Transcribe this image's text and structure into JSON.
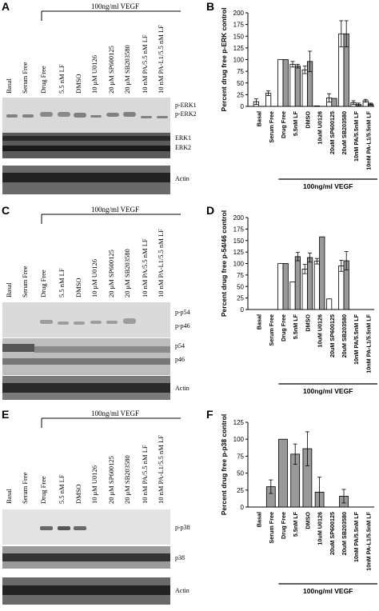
{
  "panels": {
    "A": {
      "letter": "A",
      "vegf_label": "100ng/ml VEGF",
      "lanes": [
        "Basal",
        "Serum Free",
        "Drug Free",
        "5.5 nM LF",
        "DMSO",
        "10 μM U0126",
        "20 μM SP600125",
        "20 μM SB203580",
        "10 nM PA/5.5 nM LF",
        "10 nM PA-L1/5.5 nM LF"
      ],
      "blot_labels": [
        [
          "p-ERK1",
          "p-ERK2"
        ],
        [
          "ERK1",
          "ERK2"
        ],
        [
          "Actin"
        ]
      ]
    },
    "C": {
      "letter": "C",
      "vegf_label": "100ng/ml VEGF",
      "lanes": [
        "Basal",
        "Serum Free",
        "Drug Free",
        "5.5 nM LF",
        "DMSO",
        "10 μM U0126",
        "20 μM SP600125",
        "20 μM SB203580",
        "10 nM PA/5.5 nM LF",
        "10 nM PA-L1/5.5 nM LF"
      ],
      "blot_labels": [
        [
          "p-p54",
          "p-p46"
        ],
        [
          "p54",
          "p46"
        ],
        [
          "Actin"
        ]
      ]
    },
    "E": {
      "letter": "E",
      "vegf_label": "100ng/ml VEGF",
      "lanes": [
        "Basal",
        "Serum Free",
        "Drug Free",
        "5.5 nM LF",
        "DMSO",
        "10 μM U0126",
        "20 μM SP600125",
        "20 μM SB203580",
        "10 nM PA/5.5 nM LF",
        "10 nM PA-L1/5.5 nM LF"
      ],
      "blot_labels": [
        [
          "p-p38"
        ],
        [
          "p38"
        ],
        [
          "Actin"
        ]
      ]
    }
  },
  "chart_data": [
    {
      "panel": "B",
      "type": "bar",
      "ylabel": "Percent drug free p-ERK control",
      "ylim": [
        0,
        200
      ],
      "yticks": [
        "0",
        "25",
        "50",
        "75",
        "100",
        "125",
        "150",
        "175",
        "200"
      ],
      "categories": [
        "Basal",
        "Serum Free",
        "Drug Free",
        "5.5nM LF",
        "DMSO",
        "10uM U0126",
        "20uM SP600125",
        "20uM SB203580",
        "10nM PA/5.5nM LF",
        "10nM PA-L1/5.5nM LF"
      ],
      "series": [
        {
          "values": [
            10,
            28,
            100,
            90,
            78,
            1,
            18,
            155,
            8,
            12
          ],
          "errors": [
            6,
            5,
            0,
            6,
            8,
            0,
            9,
            28,
            4,
            3
          ],
          "color": "#ffffff"
        },
        {
          "values": [
            null,
            null,
            100,
            86,
            96,
            null,
            17,
            155,
            4,
            5
          ],
          "errors": [
            0,
            0,
            0,
            4,
            22,
            0,
            0,
            28,
            3,
            2
          ],
          "color": "#999999"
        }
      ],
      "group_label": "100ng/ml VEGF"
    },
    {
      "panel": "D",
      "type": "bar",
      "ylabel": "Percent drug free p-54/46 control",
      "ylim": [
        0,
        200
      ],
      "yticks": [
        "0",
        "25",
        "50",
        "75",
        "100",
        "125",
        "150",
        "175",
        "200"
      ],
      "categories": [
        "Basal",
        "Serum Free",
        "Drug Free",
        "5.5nM LF",
        "DMSO",
        "10uM U0126",
        "20uM SP600125",
        "20uM SB203580",
        "10nM PA/5.5nM LF",
        "10nM PA-L1/5.5nM LF"
      ],
      "series": [
        {
          "values": [
            null,
            null,
            100,
            60,
            88,
            105,
            23,
            95,
            null,
            null
          ],
          "errors": [
            0,
            0,
            0,
            0,
            10,
            6,
            0,
            12,
            0,
            0
          ],
          "color": "#ffffff"
        },
        {
          "values": [
            null,
            null,
            100,
            115,
            113,
            158,
            null,
            106,
            null,
            null
          ],
          "errors": [
            0,
            0,
            0,
            9,
            10,
            0,
            0,
            20,
            0,
            0
          ],
          "color": "#999999"
        }
      ],
      "group_label": "100ng/ml VEGF"
    },
    {
      "panel": "F",
      "type": "bar",
      "ylabel": "Percent drug free p-p38 control",
      "ylim": [
        0,
        125
      ],
      "yticks": [
        "0",
        "25",
        "50",
        "75",
        "100",
        "125"
      ],
      "categories": [
        "Basal",
        "Serum Free",
        "Drug Free",
        "5.5nM LF",
        "DMSO",
        "10uM U0126",
        "20uM SP600125",
        "20uM SB203580",
        "10nM PA/5.5nM LF",
        "10nM PA-L1/5.5nM LF"
      ],
      "series": [
        {
          "values": [
            null,
            30,
            100,
            78,
            86,
            22,
            null,
            16,
            null,
            null
          ],
          "errors": [
            0,
            10,
            0,
            15,
            25,
            22,
            0,
            10,
            0,
            0
          ],
          "color": "#999999"
        }
      ],
      "group_label": "100ng/ml VEGF"
    }
  ]
}
